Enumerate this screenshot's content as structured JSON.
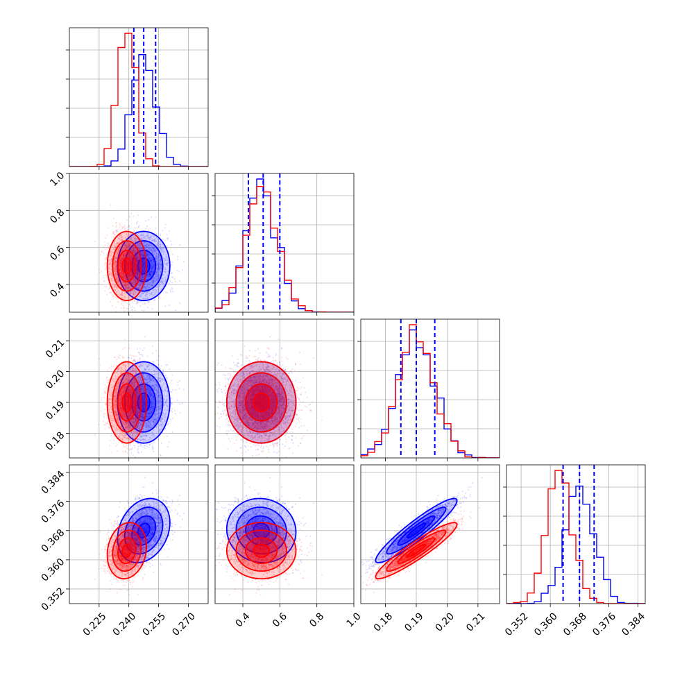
{
  "chart_data": {
    "type": "corner",
    "parameters": [
      {
        "range": [
          0.21,
          0.28
        ],
        "ticks": [
          0.225,
          0.24,
          0.255,
          0.27
        ],
        "tick_labels": [
          "0.225",
          "0.240",
          "0.255",
          "0.270"
        ]
      },
      {
        "range": [
          0.25,
          1.0
        ],
        "ticks": [
          0.4,
          0.6,
          0.8,
          1.0
        ],
        "tick_labels": [
          "0.4",
          "0.6",
          "0.8",
          "1.0"
        ],
        "y_ticks": [
          0.4,
          0.6,
          0.8,
          1.0
        ],
        "y_tick_labels": [
          "0.4",
          "0.6",
          "0.8",
          "1.0"
        ]
      },
      {
        "range": [
          0.172,
          0.217
        ],
        "ticks": [
          0.18,
          0.19,
          0.2,
          0.21
        ],
        "tick_labels": [
          "0.18",
          "0.19",
          "0.20",
          "0.21"
        ]
      },
      {
        "range": [
          0.348,
          0.386
        ],
        "ticks": [
          0.352,
          0.36,
          0.368,
          0.376,
          0.384
        ],
        "tick_labels": [
          "0.352",
          "0.360",
          "0.368",
          "0.376",
          "0.384"
        ]
      }
    ],
    "series": [
      {
        "color": "#0000ff",
        "mean": [
          0.2475,
          0.5,
          0.19,
          0.368
        ],
        "std": [
          0.006,
          0.085,
          0.006,
          0.004
        ],
        "correlations": [
          [
            2,
            3,
            0.93
          ],
          [
            0,
            3,
            0.25
          ],
          [
            1,
            3,
            -0.05
          ]
        ],
        "quantiles": [
          [
            0.2425,
            0.2475,
            0.2535
          ],
          [
            0.43,
            0.51,
            0.6
          ],
          [
            0.185,
            0.19,
            0.196
          ],
          [
            0.3635,
            0.368,
            0.372
          ]
        ]
      },
      {
        "color": "#ff0000",
        "mean": [
          0.239,
          0.5,
          0.19,
          0.3625
        ],
        "std": [
          0.0045,
          0.085,
          0.006,
          0.0035
        ],
        "correlations": [
          [
            2,
            3,
            0.93
          ],
          [
            0,
            3,
            0.15
          ],
          [
            1,
            3,
            0.0
          ]
        ]
      }
    ],
    "quantile_line_color": "#0000ff",
    "grid": true
  }
}
